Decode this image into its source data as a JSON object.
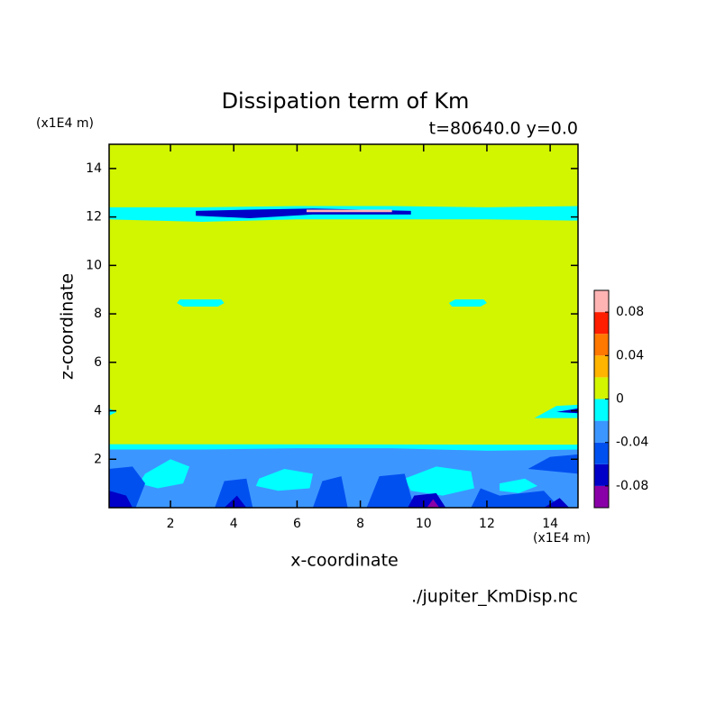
{
  "chart_data": {
    "type": "contour",
    "title": "Dissipation term of Km",
    "subtitle": "t=80640.0 y=0.0",
    "x_label": "x-coordinate",
    "y_label": "z-coordinate",
    "x_unit": "(x1E4 m)",
    "y_unit": "(x1E4 m)",
    "footer": "./jupiter_KmDisp.nc",
    "xlim": [
      0.06,
      14.88
    ],
    "ylim": [
      0,
      15
    ],
    "xticks": [
      2,
      4,
      6,
      8,
      10,
      12,
      14
    ],
    "yticks": [
      2,
      4,
      6,
      8,
      10,
      12,
      14
    ],
    "levels": [
      -0.1,
      -0.08,
      -0.06,
      -0.04,
      -0.02,
      0,
      0.02,
      0.04,
      0.06,
      0.08,
      0.1
    ],
    "colors": [
      "#8a00a8",
      "#0000c8",
      "#0050f0",
      "#3c96ff",
      "#00ffff",
      "#d2f500",
      "#ffb400",
      "#ff7800",
      "#ff1e00",
      "#ffb4b4"
    ],
    "colorbar_ticks": [
      -0.08,
      -0.04,
      0,
      0.04,
      0.08
    ],
    "regions": [
      {
        "level": 5,
        "x": [
          0.06,
          14.88,
          14.88,
          0.06
        ],
        "z": [
          0,
          0,
          15,
          15
        ]
      },
      {
        "level": 4,
        "x": [
          0.06,
          3,
          6,
          9,
          12,
          14.88,
          14.88,
          0.06
        ],
        "z": [
          0,
          0,
          0,
          0,
          0,
          0,
          2.6,
          2.62
        ]
      },
      {
        "level": 3,
        "x": [
          0.06,
          14.88,
          14.88,
          12,
          9,
          6,
          3,
          0.06
        ],
        "z": [
          0,
          0,
          2.4,
          2.35,
          2.45,
          2.45,
          2.4,
          2.4
        ]
      },
      {
        "level": 4,
        "x": [
          1.2,
          2.0,
          2.6,
          2.4,
          1.6,
          1.0
        ],
        "z": [
          1.4,
          2.0,
          1.7,
          1.0,
          0.8,
          1.0
        ]
      },
      {
        "level": 4,
        "x": [
          4.8,
          5.6,
          6.5,
          6.4,
          5.4,
          4.7
        ],
        "z": [
          1.2,
          1.6,
          1.4,
          0.8,
          0.7,
          0.9
        ]
      },
      {
        "level": 4,
        "x": [
          9.4,
          10.4,
          11.5,
          11.6,
          10.6,
          9.6
        ],
        "z": [
          1.2,
          1.7,
          1.5,
          0.8,
          0.5,
          0.7
        ]
      },
      {
        "level": 4,
        "x": [
          12.4,
          13.2,
          13.6,
          13.0,
          12.4
        ],
        "z": [
          1.0,
          1.2,
          0.9,
          0.6,
          0.7
        ]
      },
      {
        "level": 2,
        "x": [
          0.06,
          0.9,
          1.2,
          0.8,
          0.06
        ],
        "z": [
          0,
          0,
          1.0,
          1.7,
          1.6
        ]
      },
      {
        "level": 2,
        "x": [
          3.4,
          4.6,
          4.4,
          3.7
        ],
        "z": [
          0,
          0,
          1.2,
          1.1
        ]
      },
      {
        "level": 2,
        "x": [
          6.5,
          7.6,
          7.4,
          6.8
        ],
        "z": [
          0,
          0,
          1.3,
          1.1
        ]
      },
      {
        "level": 2,
        "x": [
          8.2,
          9.7,
          9.4,
          8.6
        ],
        "z": [
          0,
          0,
          1.4,
          1.3
        ]
      },
      {
        "level": 2,
        "x": [
          11.5,
          14.3,
          13.8,
          12.4,
          11.8
        ],
        "z": [
          0,
          0,
          0.7,
          0.5,
          0.8
        ]
      },
      {
        "level": 2,
        "x": [
          13.3,
          14.88,
          14.88,
          14.0
        ],
        "z": [
          1.6,
          1.4,
          2.2,
          2.1
        ]
      },
      {
        "level": 1,
        "x": [
          0.06,
          0.8,
          0.6,
          0.06
        ],
        "z": [
          0,
          0,
          0.5,
          0.7
        ]
      },
      {
        "level": 1,
        "x": [
          3.7,
          4.4,
          4.1
        ],
        "z": [
          0,
          0,
          0.5
        ]
      },
      {
        "level": 1,
        "x": [
          9.5,
          10.7,
          10.4,
          9.7
        ],
        "z": [
          0,
          0,
          0.6,
          0.5
        ]
      },
      {
        "level": 1,
        "x": [
          13.8,
          14.6,
          14.3
        ],
        "z": [
          0,
          0,
          0.4
        ]
      },
      {
        "level": 0,
        "x": [
          10.1,
          10.5,
          10.3
        ],
        "z": [
          0,
          0,
          0.35
        ]
      },
      {
        "level": 4,
        "x": [
          0.06,
          3,
          6,
          9,
          12,
          14.88,
          14.88,
          12,
          9,
          6,
          3,
          0.06
        ],
        "z": [
          11.9,
          11.8,
          11.9,
          11.9,
          11.9,
          11.85,
          12.45,
          12.4,
          12.45,
          12.45,
          12.4,
          12.4
        ]
      },
      {
        "level": 1,
        "x": [
          2.8,
          4.5,
          6.5,
          9.6,
          9.6,
          6.5,
          4.5,
          2.8
        ],
        "z": [
          12.05,
          11.95,
          12.1,
          12.1,
          12.25,
          12.35,
          12.3,
          12.25
        ]
      },
      {
        "level": 9,
        "x": [
          6.3,
          9.0,
          9.0,
          6.3
        ],
        "z": [
          12.2,
          12.2,
          12.3,
          12.3
        ]
      },
      {
        "level": 4,
        "x": [
          2.3,
          3.6,
          3.7,
          3.5,
          2.4,
          2.2
        ],
        "z": [
          8.6,
          8.6,
          8.45,
          8.3,
          8.3,
          8.45
        ]
      },
      {
        "level": 4,
        "x": [
          11.0,
          11.9,
          12.0,
          11.8,
          10.9,
          10.8
        ],
        "z": [
          8.6,
          8.6,
          8.45,
          8.3,
          8.3,
          8.45
        ]
      },
      {
        "level": 4,
        "x": [
          0.06,
          0.3,
          0.06
        ],
        "z": [
          3.8,
          3.95,
          4.1
        ]
      },
      {
        "level": 4,
        "x": [
          13.5,
          14.88,
          14.88,
          14.2
        ],
        "z": [
          3.7,
          3.7,
          4.25,
          4.2
        ]
      },
      {
        "level": 1,
        "x": [
          14.2,
          14.88,
          14.88
        ],
        "z": [
          3.95,
          3.9,
          4.1
        ]
      }
    ]
  }
}
